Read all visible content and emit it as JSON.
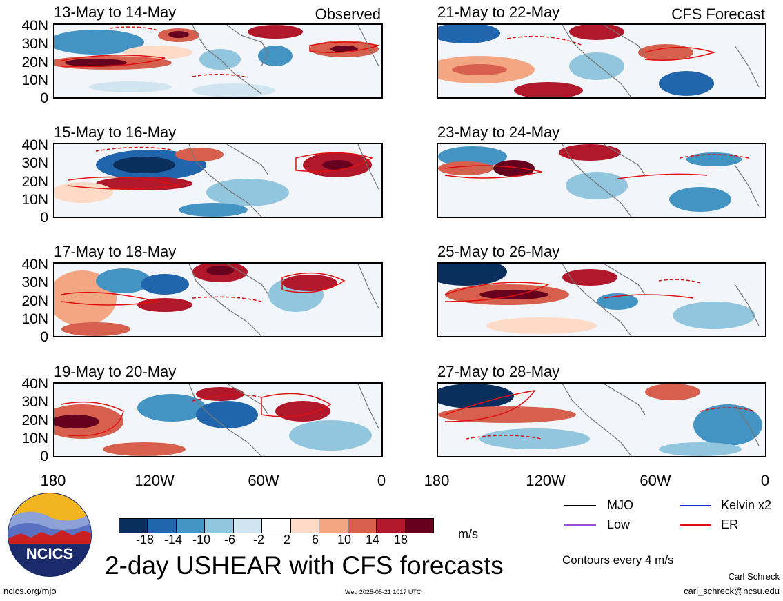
{
  "panels_left": [
    {
      "title": "13-May to 14-May"
    },
    {
      "title": "15-May to 16-May"
    },
    {
      "title": "17-May to 18-May"
    },
    {
      "title": "19-May to 20-May"
    }
  ],
  "panels_right": [
    {
      "title": "21-May to 22-May"
    },
    {
      "title": "23-May to 24-May"
    },
    {
      "title": "25-May to 26-May"
    },
    {
      "title": "27-May to 28-May"
    }
  ],
  "labels": {
    "observed": "Observed",
    "forecast": "CFS Forecast",
    "units": "m/s",
    "main_title": "2-day USHEAR with CFS forecasts",
    "contours": "Contours every 4 m/s",
    "author": "Carl Schreck",
    "email": "carl_schreck@ncsu.edu",
    "url": "ncics.org/mjo",
    "timestamp": "Wed 2025-05-21 1017 UTC",
    "logo_text": "NCICS"
  },
  "y_ticks": [
    "40N",
    "30N",
    "20N",
    "10N",
    "0"
  ],
  "x_ticks": [
    "180",
    "120W",
    "60W",
    "0"
  ],
  "colorbar": {
    "labels": [
      "-18",
      "-14",
      "-10",
      "-6",
      "-2",
      "2",
      "6",
      "10",
      "14",
      "18"
    ],
    "colors": [
      "#0a2f5c",
      "#2166ac",
      "#4393c3",
      "#92c5de",
      "#d1e5f0",
      "#ffffff",
      "#fddbc7",
      "#f4a582",
      "#d6604d",
      "#b2182b",
      "#67001f"
    ]
  },
  "legend": [
    {
      "name": "MJO",
      "color": "#000000"
    },
    {
      "name": "Kelvin x2",
      "color": "#1f2bd6"
    },
    {
      "name": "Low",
      "color": "#9b4fd1"
    },
    {
      "name": "ER",
      "color": "#e01010"
    }
  ]
}
